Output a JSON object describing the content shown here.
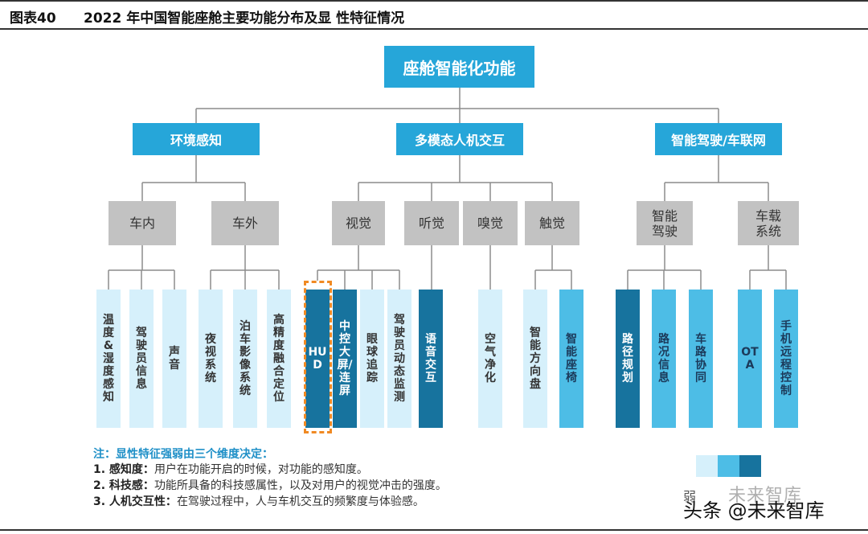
{
  "header": {
    "fig_no": "图表40",
    "title": "2022 年中国智能座舱主要功能分布及显 性特征情况"
  },
  "root": "座舱智能化功能",
  "level1": [
    "环境感知",
    "多模态人机交互",
    "智能驾驶/车联网"
  ],
  "level2": [
    "车内",
    "车外",
    "视觉",
    "听觉",
    "嗅觉",
    "触觉",
    "智能驾驶",
    "车载系统"
  ],
  "leaves": [
    "温度&湿度感知",
    "驾驶员信息",
    "声音",
    "夜视系统",
    "泊车影像系统",
    "高精度融合定位",
    "HUD",
    "中控大屏/连屏",
    "眼球追踪",
    "驾驶员动态监测",
    "语音交互",
    "空气净化",
    "智能方向盘",
    "智能座椅",
    "路径规划",
    "路况信息",
    "车路协同",
    "OTA",
    "手机远程控制"
  ],
  "legend_colors": [
    "#d6f0fb",
    "#4dbde6",
    "#17739e"
  ],
  "highlight_color": "#f08a24",
  "notes": {
    "title": "注：显性特征强弱由三个维度决定：",
    "items": [
      {
        "label": "1. 感知度：",
        "text": "用户在功能开启的时候，对功能的感知度。"
      },
      {
        "label": "2. 科技感：",
        "text": "功能所具备的科技感属性，以及对用户的视觉冲击的强度。"
      },
      {
        "label": "3. 人机交互性：",
        "text": "在驾驶过程中，人与车机交互的频繁度与体验感。"
      }
    ]
  },
  "watermark": {
    "line1": "未来智库",
    "line2": "头条 @未来智库",
    "prefix": "弱"
  }
}
